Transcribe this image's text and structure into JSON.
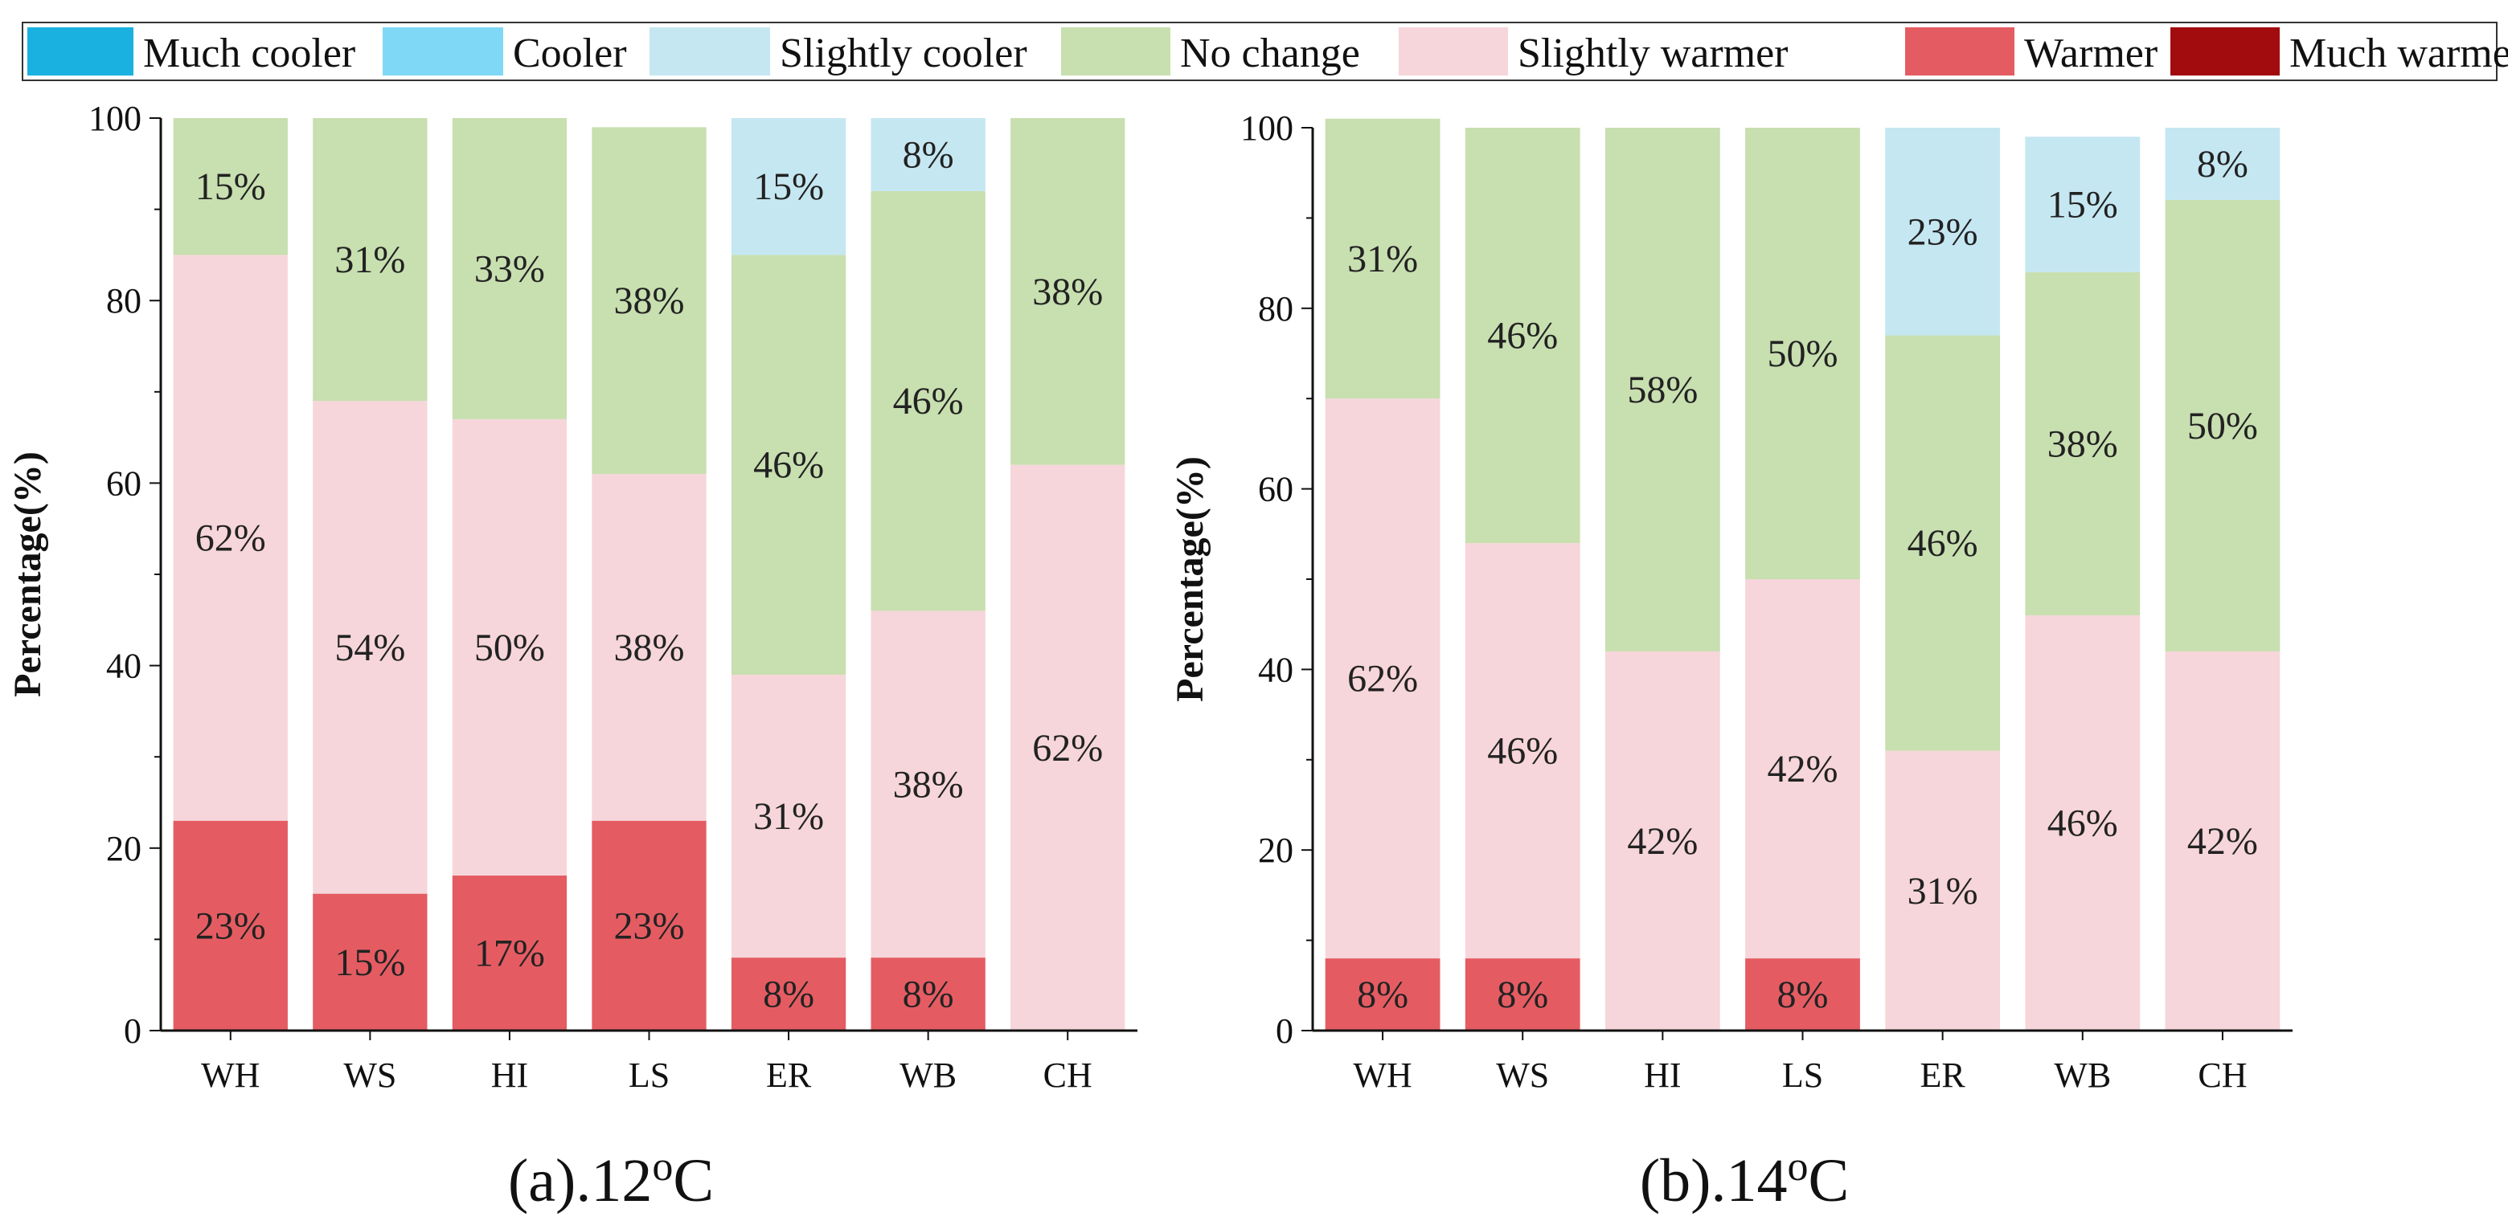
{
  "legend": {
    "items": [
      {
        "label": "Much cooler",
        "color": "#1ab1e0"
      },
      {
        "label": "Cooler",
        "color": "#7fd8f5"
      },
      {
        "label": "Slightly cooler",
        "color": "#c5e7f2"
      },
      {
        "label": "No change",
        "color": "#c8dfb0"
      },
      {
        "label": "Slightly warmer",
        "color": "#f6d6da"
      },
      {
        "label": "Warmer",
        "color": "#e45c62"
      },
      {
        "label": "Much warmer",
        "color": "#a20c0f"
      }
    ]
  },
  "chart_data": [
    {
      "type": "bar",
      "stacked": true,
      "caption": "(a).12",
      "caption_sup": "o",
      "caption_unit": "C",
      "ylabel": "Percentage(%)",
      "ylim": [
        0,
        100
      ],
      "yticks": [
        "0",
        "20",
        "40",
        "60",
        "80",
        "100"
      ],
      "categories": [
        "WH",
        "WS",
        "HI",
        "LS",
        "ER",
        "WB",
        "CH"
      ],
      "series": [
        {
          "name": "Warmer",
          "values": [
            23,
            15,
            17,
            23,
            8,
            8,
            0
          ],
          "labels": [
            "23%",
            "15%",
            "17%",
            "23%",
            "8%",
            "8%",
            ""
          ]
        },
        {
          "name": "Slightly warmer",
          "values": [
            62,
            54,
            50,
            38,
            31,
            38,
            62
          ],
          "labels": [
            "62%",
            "54%",
            "50%",
            "38%",
            "31%",
            "38%",
            "62%"
          ]
        },
        {
          "name": "No change",
          "values": [
            15,
            31,
            33,
            38,
            46,
            46,
            38
          ],
          "labels": [
            "15%",
            "31%",
            "33%",
            "38%",
            "46%",
            "46%",
            "38%"
          ]
        },
        {
          "name": "Slightly cooler",
          "values": [
            0,
            0,
            0,
            0,
            15,
            8,
            0
          ],
          "labels": [
            "",
            "",
            "",
            "",
            "15%",
            "8%",
            ""
          ]
        }
      ]
    },
    {
      "type": "bar",
      "stacked": true,
      "caption": "(b).14",
      "caption_sup": "o",
      "caption_unit": "C",
      "ylabel": "Percentage(%)",
      "ylim": [
        0,
        100
      ],
      "yticks": [
        "0",
        "20",
        "40",
        "60",
        "80",
        "100"
      ],
      "categories": [
        "WH",
        "WS",
        "HI",
        "LS",
        "ER",
        "WB",
        "CH"
      ],
      "series": [
        {
          "name": "Warmer",
          "values": [
            8,
            8,
            0,
            8,
            0,
            0,
            0
          ],
          "labels": [
            "8%",
            "8%",
            "",
            "8%",
            "",
            "",
            ""
          ]
        },
        {
          "name": "Slightly warmer",
          "values": [
            62,
            46,
            42,
            42,
            31,
            46,
            42
          ],
          "labels": [
            "62%",
            "46%",
            "42%",
            "42%",
            "31%",
            "46%",
            "42%"
          ]
        },
        {
          "name": "No change",
          "values": [
            31,
            46,
            58,
            50,
            46,
            38,
            50
          ],
          "labels": [
            "31%",
            "46%",
            "58%",
            "50%",
            "46%",
            "38%",
            "50%"
          ]
        },
        {
          "name": "Slightly cooler",
          "values": [
            0,
            0,
            0,
            0,
            23,
            15,
            8
          ],
          "labels": [
            "",
            "",
            "",
            "",
            "23%",
            "15%",
            "8%"
          ]
        }
      ]
    }
  ]
}
